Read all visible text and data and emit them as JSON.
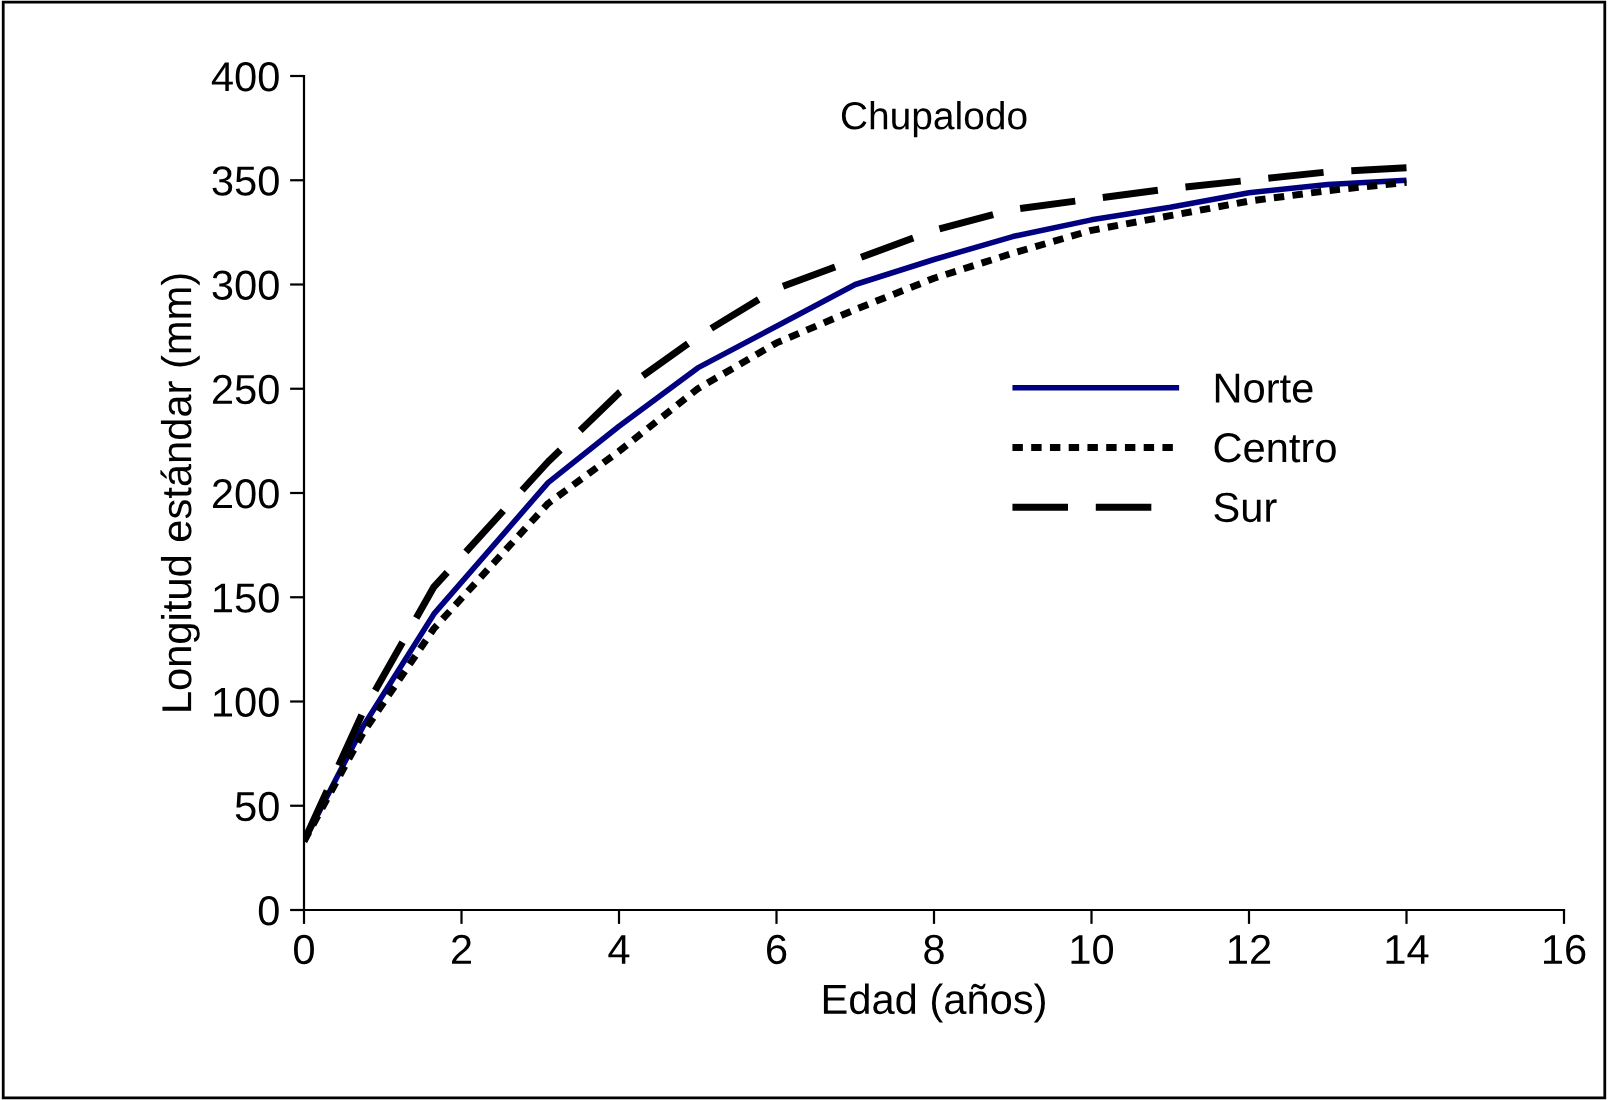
{
  "chart_data": {
    "type": "line",
    "title": "Chupalodo",
    "xlabel": "Edad (años)",
    "ylabel": "Longitud estándar (mm)",
    "x": [
      0,
      0.75,
      1.65,
      3.1,
      4,
      5,
      6,
      7,
      8,
      9,
      10,
      11,
      12,
      13,
      14
    ],
    "series": [
      {
        "name": "Norte",
        "color": "#000080",
        "line_style": "solid",
        "values": [
          33,
          88,
          142,
          205,
          232,
          260,
          280,
          300,
          312,
          323,
          331,
          337,
          344,
          348,
          350
        ]
      },
      {
        "name": "Centro",
        "color": "#000000",
        "line_style": "dotted",
        "values": [
          33,
          85,
          135,
          195,
          220,
          250,
          272,
          288,
          303,
          315,
          326,
          333,
          340,
          345,
          349
        ]
      },
      {
        "name": "Sur",
        "color": "#000000",
        "line_style": "dashed",
        "values": [
          33,
          95,
          155,
          215,
          248,
          275,
          298,
          312,
          326,
          336,
          341,
          346,
          350,
          354,
          356
        ]
      }
    ],
    "xlim": [
      0,
      16
    ],
    "xticks": [
      0,
      2,
      4,
      6,
      8,
      10,
      12,
      14,
      16
    ],
    "ylim": [
      0,
      400
    ],
    "yticks": [
      0,
      50,
      100,
      150,
      200,
      250,
      300,
      350,
      400
    ],
    "grid": false,
    "legend": "right",
    "marker": "none"
  }
}
